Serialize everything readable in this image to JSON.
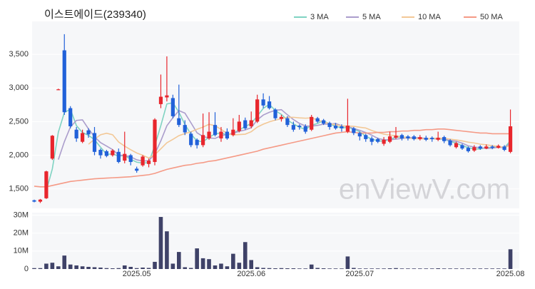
{
  "chart_data": [
    {
      "type": "candlestick",
      "title": "이스트에이드(239340)",
      "watermark": "enViewV.com",
      "up_color": "#e8262d",
      "down_color": "#2161d9",
      "open": [
        1330,
        1310,
        1360,
        1950,
        2980,
        3560,
        2700,
        2380,
        2200,
        2370,
        2330,
        2080,
        2060,
        2000,
        2050,
        1920,
        2000,
        1800,
        1850,
        1870,
        1900,
        2760,
        2860,
        2850,
        2550,
        2450,
        2320,
        2230,
        2150,
        2250,
        2450,
        2250,
        2350,
        2300,
        2360,
        2520,
        2430,
        2500,
        2830,
        2800,
        2680,
        2540,
        2550,
        2450,
        2440,
        2430,
        2380,
        2550,
        2520,
        2480,
        2440,
        2430,
        2350,
        2400,
        2330,
        2300,
        2250,
        2240,
        2170,
        2200,
        2260,
        2300,
        2280,
        2280,
        2240,
        2260,
        2260,
        2230,
        2270,
        2220,
        2120,
        2150,
        2110,
        2070,
        2130,
        2100,
        2130,
        2110,
        2130,
        2050
      ],
      "high": [
        1340,
        1350,
        1770,
        2300,
        2990,
        3800,
        2730,
        2420,
        2380,
        2400,
        2420,
        2100,
        2080,
        2090,
        2100,
        2350,
        2020,
        1830,
        2000,
        1950,
        2550,
        3200,
        3470,
        2900,
        3050,
        2520,
        2350,
        2250,
        2620,
        2640,
        2640,
        2420,
        2400,
        2550,
        2600,
        2560,
        2650,
        2900,
        2920,
        2880,
        2700,
        2600,
        2580,
        2500,
        2460,
        2460,
        2600,
        2570,
        2540,
        2500,
        2480,
        2460,
        2840,
        2420,
        2350,
        2320,
        2280,
        2260,
        2270,
        2350,
        2420,
        2320,
        2300,
        2300,
        2300,
        2290,
        2280,
        2350,
        2290,
        2240,
        2200,
        2170,
        2130,
        2150,
        2150,
        2160,
        2150,
        2160,
        2150,
        2680
      ],
      "low": [
        1300,
        1290,
        1350,
        1930,
        2970,
        2600,
        2400,
        2200,
        2180,
        2260,
        2000,
        1950,
        1970,
        1980,
        1880,
        1880,
        1850,
        1740,
        1830,
        1820,
        1850,
        2700,
        2800,
        2550,
        2420,
        2300,
        2120,
        2100,
        2120,
        2230,
        2280,
        2200,
        2230,
        2280,
        2340,
        2380,
        2400,
        2480,
        2700,
        2680,
        2520,
        2500,
        2420,
        2350,
        2380,
        2320,
        2360,
        2480,
        2450,
        2380,
        2380,
        2350,
        2330,
        2300,
        2220,
        2200,
        2150,
        2180,
        2140,
        2180,
        2240,
        2220,
        2220,
        2220,
        2220,
        2210,
        2200,
        2210,
        2180,
        2130,
        2100,
        2080,
        2040,
        2050,
        2080,
        2090,
        2090,
        2100,
        2060,
        2030
      ],
      "close": [
        1310,
        1340,
        1760,
        2290,
        2980,
        2640,
        2430,
        2250,
        2330,
        2310,
        2050,
        2000,
        1990,
        2070,
        1900,
        2020,
        1900,
        1770,
        1980,
        1920,
        2530,
        2870,
        2890,
        2580,
        2450,
        2340,
        2150,
        2150,
        2300,
        2350,
        2300,
        2350,
        2250,
        2380,
        2500,
        2400,
        2520,
        2830,
        2740,
        2700,
        2550,
        2570,
        2450,
        2380,
        2420,
        2350,
        2570,
        2500,
        2470,
        2420,
        2400,
        2400,
        2440,
        2330,
        2280,
        2240,
        2200,
        2200,
        2230,
        2280,
        2290,
        2250,
        2250,
        2240,
        2270,
        2230,
        2240,
        2260,
        2210,
        2150,
        2180,
        2100,
        2060,
        2120,
        2100,
        2130,
        2110,
        2140,
        2080,
        2430
      ],
      "series": [
        {
          "name": "3 MA",
          "color": "#7fd3c2",
          "values": [
            null,
            null,
            1470,
            1797,
            2343,
            2637,
            2683,
            2440,
            2337,
            2297,
            2230,
            2120,
            2013,
            2020,
            1987,
            1997,
            1940,
            1897,
            1883,
            1890,
            2143,
            2440,
            2763,
            2780,
            2640,
            2457,
            2313,
            2213,
            2200,
            2267,
            2317,
            2333,
            2300,
            2327,
            2377,
            2427,
            2473,
            2583,
            2697,
            2757,
            2663,
            2607,
            2523,
            2467,
            2417,
            2383,
            2447,
            2473,
            2513,
            2463,
            2430,
            2407,
            2413,
            2390,
            2350,
            2283,
            2240,
            2213,
            2210,
            2237,
            2267,
            2273,
            2263,
            2247,
            2253,
            2247,
            2247,
            2243,
            2237,
            2207,
            2180,
            2143,
            2113,
            2093,
            2093,
            2117,
            2113,
            2127,
            2110,
            2217
          ]
        },
        {
          "name": "5 MA",
          "color": "#ab9dcc",
          "values": [
            null,
            null,
            null,
            null,
            1936,
            2202,
            2420,
            2518,
            2526,
            2392,
            2274,
            2188,
            2136,
            2084,
            2002,
            1996,
            1976,
            1932,
            1914,
            1918,
            2020,
            2214,
            2438,
            2558,
            2664,
            2626,
            2482,
            2334,
            2278,
            2258,
            2250,
            2290,
            2310,
            2326,
            2356,
            2376,
            2410,
            2526,
            2598,
            2638,
            2668,
            2678,
            2602,
            2530,
            2474,
            2434,
            2434,
            2444,
            2462,
            2462,
            2472,
            2438,
            2426,
            2398,
            2370,
            2338,
            2298,
            2250,
            2230,
            2230,
            2240,
            2250,
            2260,
            2262,
            2260,
            2248,
            2246,
            2248,
            2242,
            2218,
            2208,
            2180,
            2140,
            2122,
            2112,
            2102,
            2104,
            2120,
            2112,
            2178
          ]
        },
        {
          "name": "10 MA",
          "color": "#f3c896",
          "values": [
            null,
            null,
            null,
            null,
            null,
            null,
            null,
            null,
            null,
            2164,
            2238,
            2304,
            2327,
            2305,
            2197,
            2135,
            2082,
            2034,
            1999,
            1960,
            2008,
            2095,
            2185,
            2236,
            2291,
            2323,
            2348,
            2386,
            2418,
            2461,
            2438,
            2386,
            2322,
            2302,
            2307,
            2313,
            2350,
            2418,
            2462,
            2497,
            2522,
            2544,
            2564,
            2564,
            2556,
            2551,
            2556,
            2523,
            2496,
            2468,
            2453,
            2436,
            2435,
            2430,
            2416,
            2405,
            2368,
            2338,
            2314,
            2300,
            2289,
            2274,
            2255,
            2246,
            2245,
            2244,
            2248,
            2254,
            2252,
            2239,
            2228,
            2213,
            2194,
            2182,
            2165,
            2155,
            2142,
            2130,
            2117,
            2145
          ]
        },
        {
          "name": "50 MA",
          "color": "#f59a86",
          "values": [
            1540,
            1530,
            1530,
            1550,
            1570,
            1590,
            1610,
            1620,
            1630,
            1640,
            1650,
            1655,
            1660,
            1665,
            1670,
            1675,
            1680,
            1690,
            1700,
            1710,
            1730,
            1760,
            1790,
            1810,
            1830,
            1850,
            1860,
            1880,
            1890,
            1910,
            1920,
            1940,
            1960,
            1980,
            2000,
            2020,
            2040,
            2060,
            2090,
            2110,
            2130,
            2150,
            2170,
            2190,
            2210,
            2230,
            2250,
            2270,
            2290,
            2310,
            2330,
            2340,
            2350,
            2340,
            2330,
            2330,
            2330,
            2340,
            2340,
            2350,
            2350,
            2360,
            2360,
            2370,
            2370,
            2380,
            2380,
            2390,
            2390,
            2380,
            2370,
            2360,
            2350,
            2340,
            2330,
            2330,
            2320,
            2320,
            2320,
            2320
          ]
        }
      ],
      "ylim": [
        1210,
        3990
      ],
      "yticks": [
        {
          "value": 1500,
          "label": "1,500"
        },
        {
          "value": 2000,
          "label": "2,000"
        },
        {
          "value": 2500,
          "label": "2,500"
        },
        {
          "value": 3000,
          "label": "3,000"
        },
        {
          "value": 3500,
          "label": "3,500"
        }
      ],
      "grid": true,
      "legend": "top-right"
    },
    {
      "type": "bar",
      "color": "#3f4268",
      "categories": [
        null,
        null,
        null,
        null,
        null,
        null,
        null,
        null,
        null,
        null,
        null,
        null,
        null,
        null,
        null,
        null,
        null,
        "2025.05",
        null,
        null,
        null,
        null,
        null,
        null,
        null,
        null,
        null,
        null,
        null,
        null,
        null,
        null,
        null,
        null,
        null,
        null,
        "2025.06",
        null,
        null,
        null,
        null,
        null,
        null,
        null,
        null,
        null,
        null,
        null,
        null,
        null,
        null,
        null,
        null,
        null,
        "2025.07",
        null,
        null,
        null,
        null,
        null,
        null,
        null,
        null,
        null,
        null,
        null,
        null,
        null,
        null,
        null,
        null,
        null,
        null,
        null,
        null,
        null,
        null,
        null,
        null,
        "2025.08"
      ],
      "values": [
        500000,
        500000,
        3000000,
        3500000,
        1500000,
        7500000,
        2500000,
        2000000,
        1500000,
        1200000,
        1000000,
        800000,
        500000,
        400000,
        500000,
        2000000,
        1200000,
        500000,
        800000,
        600000,
        4000000,
        29000000,
        21000000,
        3000000,
        9500000,
        1000000,
        600000,
        11500000,
        6000000,
        5500000,
        2000000,
        3000000,
        1500000,
        8500000,
        3500000,
        15000000,
        5000000,
        1000000,
        600000,
        500000,
        400000,
        500000,
        400000,
        400000,
        300000,
        300000,
        2500000,
        600000,
        400000,
        300000,
        300000,
        300000,
        7000000,
        600000,
        300000,
        300000,
        300000,
        300000,
        300000,
        400000,
        500000,
        300000,
        300000,
        300000,
        300000,
        300000,
        300000,
        400000,
        300000,
        300000,
        300000,
        300000,
        300000,
        300000,
        300000,
        300000,
        300000,
        300000,
        300000,
        11000000
      ],
      "ylim": [
        0,
        31400000
      ],
      "yticks": [
        0,
        {
          "value": 10000000,
          "label": "10M"
        },
        {
          "value": 20000000,
          "label": "20M"
        },
        {
          "value": 30000000,
          "label": "30M"
        }
      ],
      "grid": true
    }
  ]
}
